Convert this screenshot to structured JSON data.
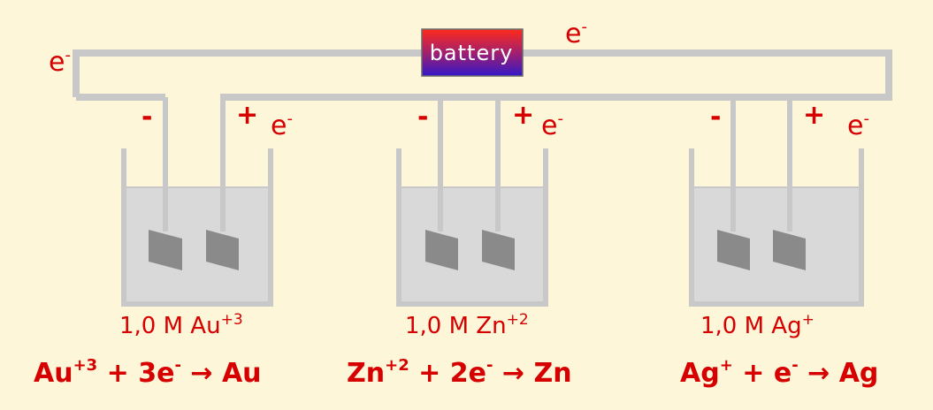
{
  "battery": {
    "label": "battery"
  },
  "wire_electron_labels": [
    {
      "base": "e",
      "sup": "-"
    },
    {
      "base": "e",
      "sup": "-"
    }
  ],
  "cells": [
    {
      "negative_sign": "-",
      "positive_sign": "+",
      "electron": {
        "base": "e",
        "sup": "-"
      },
      "concentration": {
        "text": "1,0 M Au",
        "sup": "+3"
      },
      "reaction": {
        "reactant": "Au",
        "reactant_sup": "+3",
        "plus1": " + ",
        "electrons": "3e",
        "electrons_sup": "-",
        "arrow": " → ",
        "product": "Au"
      }
    },
    {
      "negative_sign": "-",
      "positive_sign": "+",
      "electron": {
        "base": "e",
        "sup": "-"
      },
      "concentration": {
        "text": "1,0 M Zn",
        "sup": "+2"
      },
      "reaction": {
        "reactant": "Zn",
        "reactant_sup": "+2",
        "plus1": " + ",
        "electrons": "2e",
        "electrons_sup": "-",
        "arrow": " → ",
        "product": "Zn"
      }
    },
    {
      "negative_sign": "-",
      "positive_sign": "+",
      "electron": {
        "base": "e",
        "sup": "-"
      },
      "concentration": {
        "text": "1,0 M Ag",
        "sup": "+"
      },
      "reaction": {
        "reactant": "Ag",
        "reactant_sup": "+",
        "plus1": " + ",
        "electrons": "e",
        "electrons_sup": "-",
        "arrow": " → ",
        "product": "Ag"
      }
    }
  ],
  "colors": {
    "background": "#fdf6d9",
    "wire": "#c8c8c8",
    "text": "#d60000",
    "electrode": "#8a8a8a",
    "solution": "#d9d9d9"
  }
}
